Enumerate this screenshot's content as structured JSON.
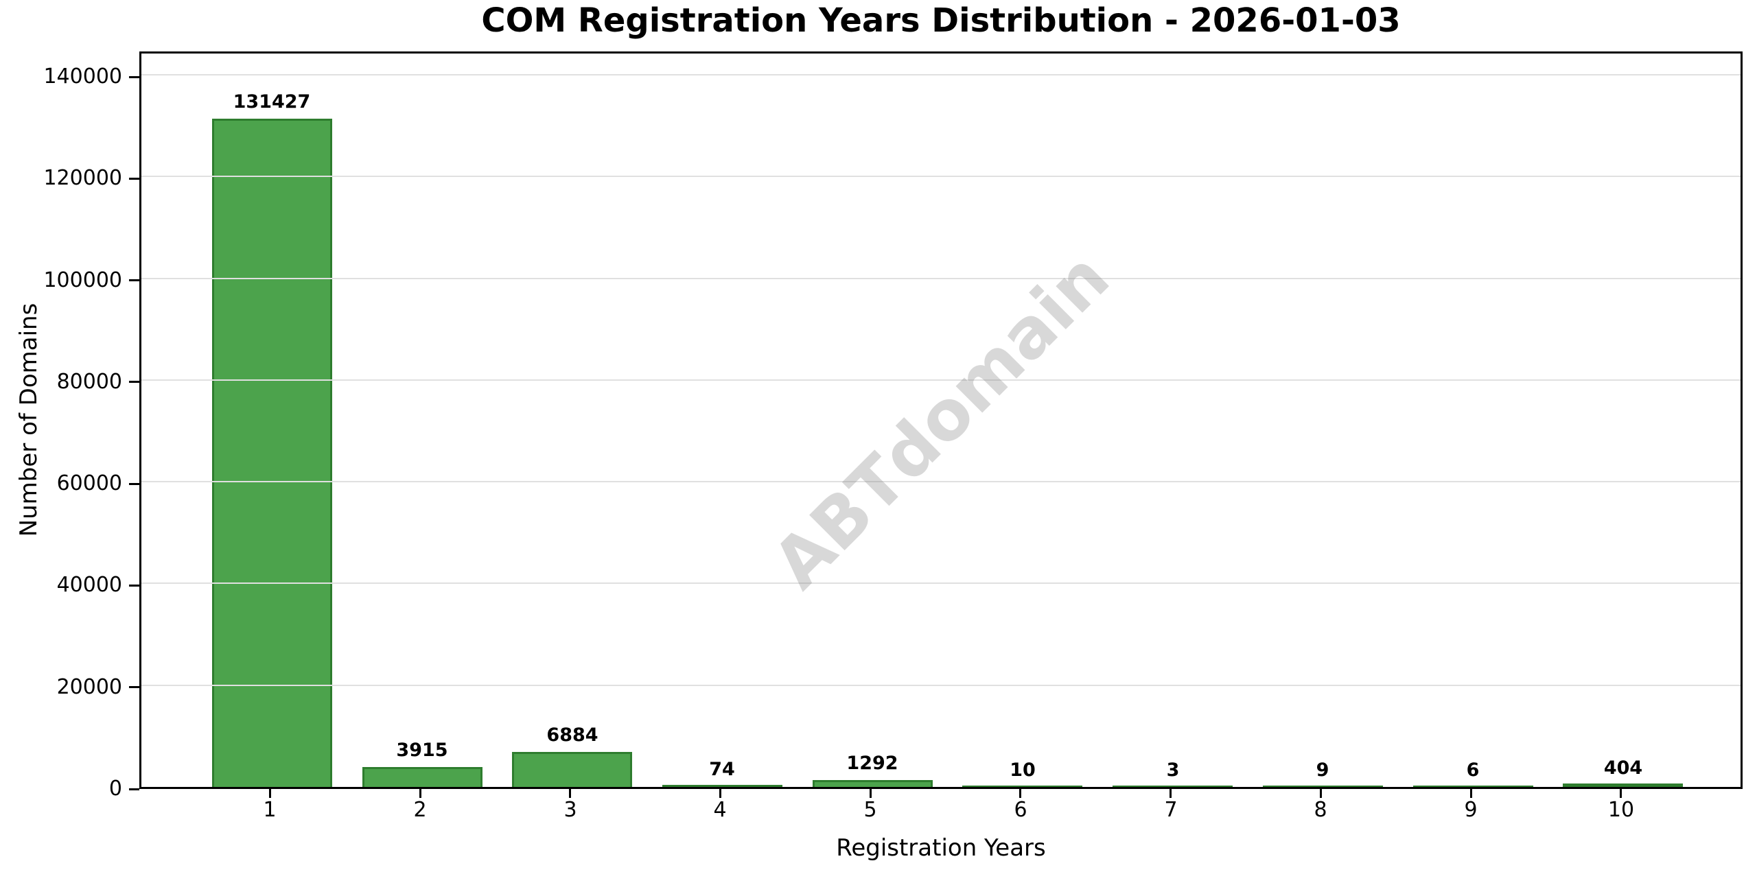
{
  "title": "COM Registration Years Distribution - 2026-01-03",
  "chart_data": {
    "type": "bar",
    "title": "COM Registration Years Distribution - 2026-01-03",
    "xlabel": "Registration Years",
    "ylabel": "Number of Domains",
    "categories": [
      "1",
      "2",
      "3",
      "4",
      "5",
      "6",
      "7",
      "8",
      "9",
      "10"
    ],
    "values": [
      131427,
      3915,
      6884,
      74,
      1292,
      10,
      3,
      9,
      6,
      404
    ],
    "value_labels": [
      "131427",
      "3915",
      "6884",
      "74",
      "1292",
      "10",
      "3",
      "9",
      "6",
      "404"
    ],
    "yticks": [
      0,
      20000,
      40000,
      60000,
      80000,
      100000,
      120000,
      140000
    ],
    "ylim": [
      0,
      145000
    ],
    "xlim": [
      0.13,
      10.81
    ],
    "bar_width_units": 0.8,
    "grid": true,
    "legend": null,
    "watermark": "ABTdomain",
    "colors": {
      "bar_fill": "#4CA34C",
      "bar_edge": "#2E7D2E",
      "gridline": "#e0e0e0",
      "spine": "#000000",
      "text": "#000000",
      "watermark": "#808080",
      "background": "#ffffff"
    }
  }
}
